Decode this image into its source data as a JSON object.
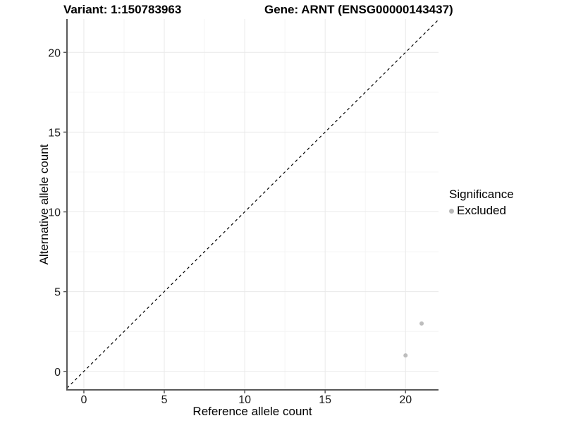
{
  "chart_data": {
    "type": "scatter",
    "title_left": "Variant: 1:150783963",
    "title_right": "Gene: ARNT (ENSG00000143437)",
    "xlabel": "Reference allele count",
    "ylabel": "Alternative allele count",
    "x_ticks": [
      0,
      5,
      10,
      15,
      20
    ],
    "y_ticks": [
      0,
      5,
      10,
      15,
      20
    ],
    "x_minor_ticks": [
      2.5,
      7.5,
      12.5,
      17.5
    ],
    "y_minor_ticks": [
      2.5,
      7.5,
      12.5,
      17.5
    ],
    "xlim": [
      -1.05,
      22.05
    ],
    "ylim": [
      -1.16,
      22.09
    ],
    "grid": true,
    "points": [
      {
        "x": 20,
        "y": 1,
        "significance": "Excluded"
      },
      {
        "x": 21,
        "y": 3,
        "significance": "Excluded"
      }
    ],
    "reference_line": {
      "equation": "y = x",
      "style": "dashed",
      "color": "#000000"
    },
    "legend": {
      "position": "right",
      "title": "Significance",
      "entries": [
        {
          "label": "Excluded",
          "color": "#b8b8b8",
          "marker": "circle"
        }
      ]
    },
    "colors": {
      "point": "#bdbdbd",
      "grid_major": "#e9e9e9",
      "grid_minor": "#f4f4f4",
      "axis_line": "#595959",
      "tick_text": "#1a1a1a"
    }
  }
}
